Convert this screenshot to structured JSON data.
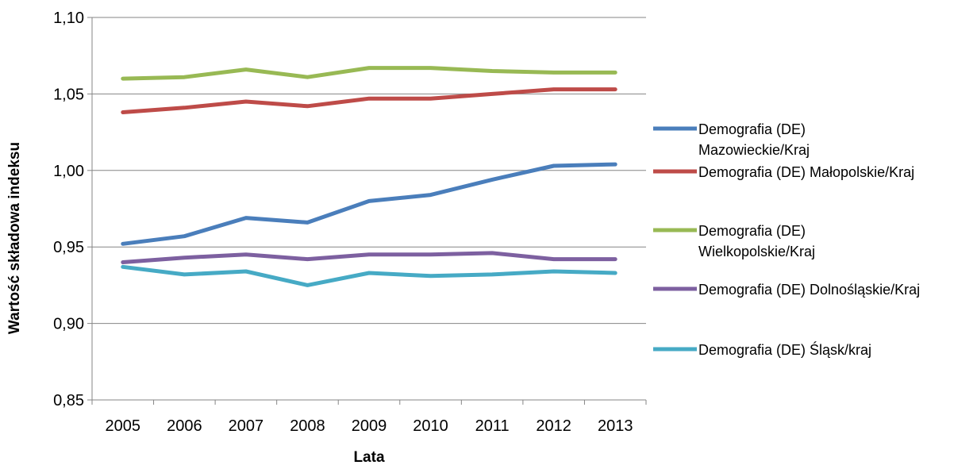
{
  "chart_data": {
    "type": "line",
    "xlabel": "Lata",
    "ylabel": "Wartość składowa indeksu",
    "ylim": [
      0.85,
      1.1
    ],
    "ytick_step": 0.05,
    "ytick_labels": [
      "0,85",
      "0,90",
      "0,95",
      "1,00",
      "1,05",
      "1,10"
    ],
    "categories": [
      "2005",
      "2006",
      "2007",
      "2008",
      "2009",
      "2010",
      "2011",
      "2012",
      "2013"
    ],
    "grid": "horizontal",
    "legend_position": "right",
    "series": [
      {
        "name_lines": [
          "Demografia (DE)",
          "Mazowieckie/Kraj"
        ],
        "color": "#4a7ebb",
        "values": [
          0.952,
          0.957,
          0.969,
          0.966,
          0.98,
          0.984,
          0.994,
          1.003,
          1.004
        ]
      },
      {
        "name_lines": [
          "Demografia (DE)  Małopolskie/Kraj"
        ],
        "color": "#be4b48",
        "values": [
          1.038,
          1.041,
          1.045,
          1.042,
          1.047,
          1.047,
          1.05,
          1.053,
          1.053
        ]
      },
      {
        "name_lines": [
          "Demografia (DE)",
          "Wielkopolskie/Kraj"
        ],
        "color": "#98b954",
        "values": [
          1.06,
          1.061,
          1.066,
          1.061,
          1.067,
          1.067,
          1.065,
          1.064,
          1.064
        ]
      },
      {
        "name_lines": [
          "Demografia (DE)  Dolnośląskie/Kraj"
        ],
        "color": "#7d60a0",
        "values": [
          0.94,
          0.943,
          0.945,
          0.942,
          0.945,
          0.945,
          0.946,
          0.942,
          0.942
        ]
      },
      {
        "name_lines": [
          "Demografia (DE) Śląsk/kraj"
        ],
        "color": "#46aac5",
        "values": [
          0.937,
          0.932,
          0.934,
          0.925,
          0.933,
          0.931,
          0.932,
          0.934,
          0.933
        ]
      }
    ]
  }
}
